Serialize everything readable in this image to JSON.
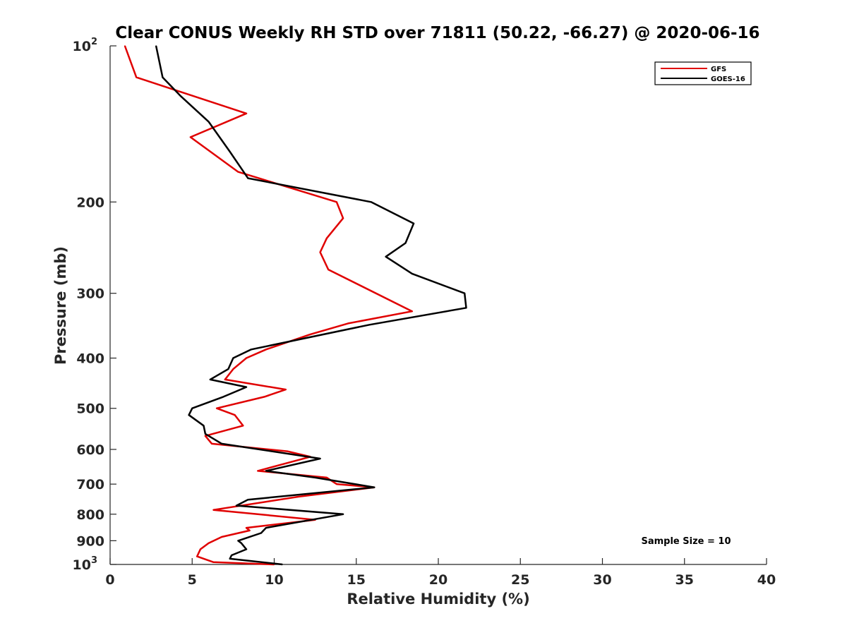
{
  "chart_data": {
    "type": "line",
    "title": "Clear CONUS Weekly RH STD over 71811 (50.22, -66.27) @ 2020-06-16",
    "xlabel": "Relative Humidity (%)",
    "ylabel": "Pressure (mb)",
    "xlim": [
      0,
      40
    ],
    "ylim": [
      100,
      1000
    ],
    "y_scale": "log",
    "y_reversed": true,
    "x_ticks": [
      "0",
      "5",
      "10",
      "15",
      "20",
      "25",
      "30",
      "35",
      "40"
    ],
    "y_ticks": [
      {
        "value": 100,
        "base": "10",
        "exp": "2"
      },
      {
        "value": 200,
        "label": "200"
      },
      {
        "value": 300,
        "label": "300"
      },
      {
        "value": 400,
        "label": "400"
      },
      {
        "value": 500,
        "label": "500"
      },
      {
        "value": 600,
        "label": "600"
      },
      {
        "value": 700,
        "label": "700"
      },
      {
        "value": 800,
        "label": "800"
      },
      {
        "value": 900,
        "label": "900"
      },
      {
        "value": 1000,
        "base": "10",
        "exp": "3"
      }
    ],
    "grid": false,
    "legend_position": "top-right",
    "annotation": "Sample Size = 10",
    "series": [
      {
        "name": "GFS",
        "color": "#e00000",
        "points": [
          [
            0.9,
            100
          ],
          [
            1.6,
            115
          ],
          [
            8.3,
            135
          ],
          [
            4.9,
            150
          ],
          [
            7.8,
            175
          ],
          [
            13.8,
            200
          ],
          [
            14.2,
            215
          ],
          [
            13.2,
            235
          ],
          [
            12.8,
            250
          ],
          [
            13.3,
            270
          ],
          [
            18.4,
            325
          ],
          [
            14.5,
            343
          ],
          [
            12.2,
            360
          ],
          [
            9.5,
            385
          ],
          [
            8.3,
            400
          ],
          [
            7.5,
            420
          ],
          [
            7.0,
            440
          ],
          [
            10.7,
            460
          ],
          [
            9.4,
            475
          ],
          [
            6.5,
            500
          ],
          [
            7.6,
            515
          ],
          [
            8.1,
            540
          ],
          [
            5.8,
            565
          ],
          [
            6.2,
            585
          ],
          [
            10.8,
            605
          ],
          [
            12.2,
            620
          ],
          [
            9.0,
            660
          ],
          [
            13.2,
            680
          ],
          [
            13.8,
            700
          ],
          [
            16.1,
            710
          ],
          [
            11.5,
            740
          ],
          [
            6.3,
            785
          ],
          [
            12.5,
            820
          ],
          [
            8.3,
            850
          ],
          [
            8.5,
            860
          ],
          [
            6.8,
            885
          ],
          [
            6.0,
            910
          ],
          [
            5.5,
            935
          ],
          [
            5.3,
            965
          ],
          [
            6.3,
            990
          ],
          [
            10.0,
            1000
          ]
        ]
      },
      {
        "name": "GOES-16",
        "color": "#000000",
        "points": [
          [
            2.8,
            100
          ],
          [
            3.2,
            115
          ],
          [
            4.3,
            125
          ],
          [
            6.0,
            140
          ],
          [
            7.3,
            160
          ],
          [
            8.4,
            180
          ],
          [
            15.9,
            200
          ],
          [
            18.5,
            220
          ],
          [
            18.0,
            240
          ],
          [
            16.8,
            255
          ],
          [
            18.4,
            275
          ],
          [
            21.6,
            300
          ],
          [
            21.7,
            320
          ],
          [
            15.8,
            345
          ],
          [
            8.6,
            385
          ],
          [
            7.5,
            400
          ],
          [
            7.2,
            420
          ],
          [
            6.1,
            440
          ],
          [
            8.3,
            455
          ],
          [
            6.9,
            475
          ],
          [
            5.0,
            500
          ],
          [
            4.8,
            515
          ],
          [
            5.7,
            540
          ],
          [
            5.8,
            560
          ],
          [
            6.8,
            585
          ],
          [
            12.8,
            625
          ],
          [
            9.5,
            660
          ],
          [
            12.5,
            680
          ],
          [
            16.1,
            710
          ],
          [
            8.4,
            750
          ],
          [
            7.7,
            770
          ],
          [
            14.2,
            800
          ],
          [
            9.5,
            850
          ],
          [
            9.2,
            870
          ],
          [
            7.8,
            900
          ],
          [
            8.0,
            910
          ],
          [
            8.3,
            935
          ],
          [
            7.4,
            960
          ],
          [
            7.3,
            975
          ],
          [
            10.5,
            1000
          ]
        ]
      }
    ]
  }
}
